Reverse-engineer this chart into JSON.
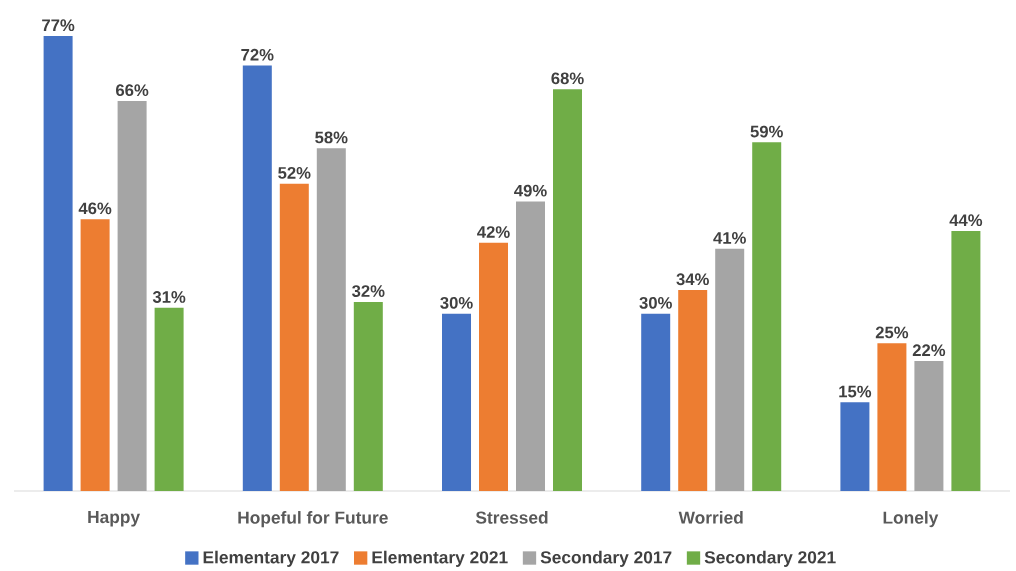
{
  "chart_data": {
    "type": "bar",
    "categories": [
      "Happy",
      "Hopeful for Future",
      "Stressed",
      "Worried",
      "Lonely"
    ],
    "series": [
      {
        "name": "Elementary 2017",
        "color": "#4472c4",
        "values": [
          77,
          72,
          30,
          30,
          15
        ],
        "value_labels": [
          "77%",
          "72%",
          "30%",
          "30%",
          "15%"
        ]
      },
      {
        "name": "Elementary 2021",
        "color": "#ed7d31",
        "values": [
          46,
          52,
          42,
          34,
          25
        ],
        "value_labels": [
          "46%",
          "52%",
          "42%",
          "34%",
          "25%"
        ]
      },
      {
        "name": "Secondary 2017",
        "color": "#a5a5a5",
        "values": [
          66,
          58,
          49,
          41,
          22
        ],
        "value_labels": [
          "66%",
          "58%",
          "49%",
          "41%",
          "22%"
        ]
      },
      {
        "name": "Secondary 2021",
        "color": "#70ad47",
        "values": [
          31,
          32,
          68,
          59,
          44
        ],
        "value_labels": [
          "31%",
          "32%",
          "68%",
          "59%",
          "44%"
        ]
      }
    ],
    "legend": "bottom"
  }
}
